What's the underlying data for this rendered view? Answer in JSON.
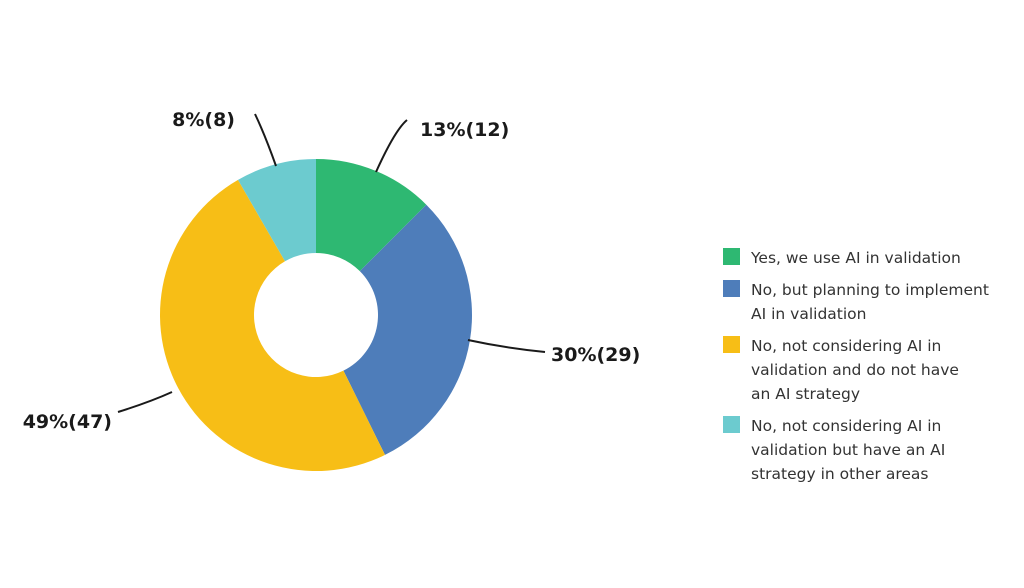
{
  "chart_data": {
    "type": "pie",
    "style": "donut",
    "legend_position": "right",
    "slices": [
      {
        "label": "Yes, we use AI in validation",
        "value": 12,
        "percent": 13,
        "data_label": "13%(12)",
        "color": "#2eb872"
      },
      {
        "label": "No, but planning to implement AI in validation",
        "value": 29,
        "percent": 30,
        "data_label": "30%(29)",
        "color": "#4e7dba"
      },
      {
        "label": "No, not considering AI in validation and do not have an AI strategy",
        "value": 47,
        "percent": 49,
        "data_label": "49%(47)",
        "color": "#f7be16"
      },
      {
        "label": "No, not considering AI in validation but have an AI strategy in other areas",
        "value": 8,
        "percent": 8,
        "data_label": "8%(8)",
        "color": "#6ccbcf"
      }
    ]
  },
  "legend": {
    "items": [
      {
        "lines": [
          "Yes, we use AI in validation"
        ],
        "color": "#2eb872"
      },
      {
        "lines": [
          "No, but planning to implement",
          "AI in validation"
        ],
        "color": "#4e7dba"
      },
      {
        "lines": [
          "No, not considering AI in",
          "validation and do not have",
          "an AI strategy"
        ],
        "color": "#f7be16"
      },
      {
        "lines": [
          "No, not considering AI in",
          "validation but have an AI",
          "strategy in other areas"
        ],
        "color": "#6ccbcf"
      }
    ]
  }
}
